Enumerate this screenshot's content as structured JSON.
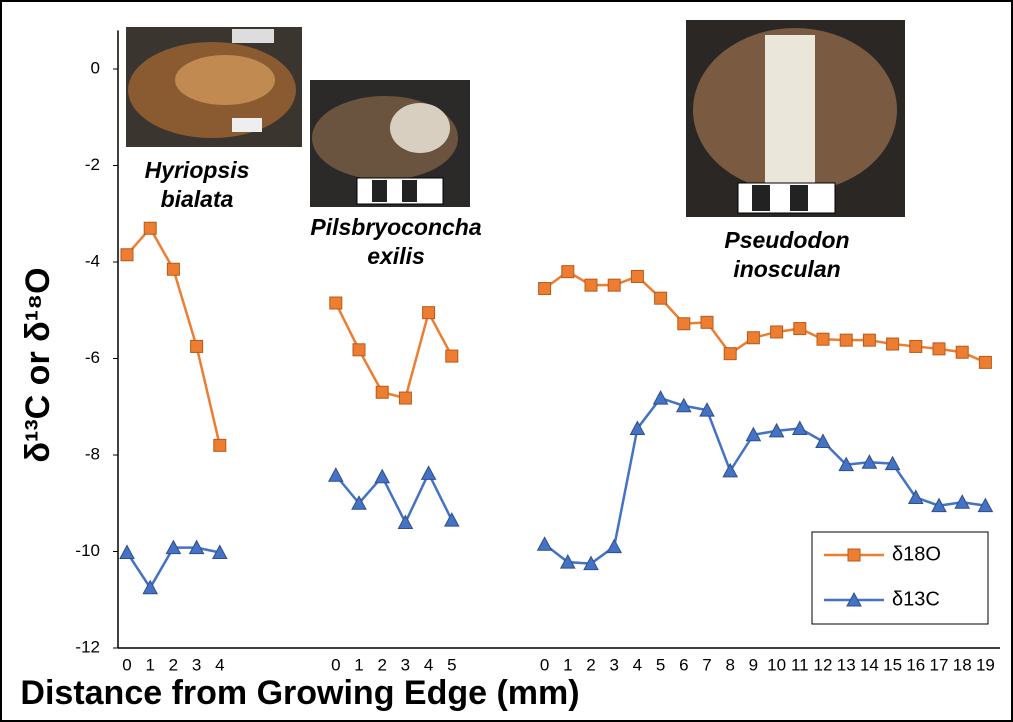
{
  "chart_data": {
    "type": "line",
    "xlabel": "Distance from Growing Edge (mm)",
    "ylabel": "δ¹³C or δ¹⁸O",
    "categories": [
      "0",
      "1",
      "2",
      "3",
      "4",
      null,
      null,
      null,
      null,
      "0",
      "1",
      "2",
      "3",
      "4",
      "5",
      null,
      null,
      null,
      "0",
      "1",
      "2",
      "3",
      "4",
      "5",
      "6",
      "7",
      "8",
      "9",
      "10",
      "11",
      "12",
      "13",
      "14",
      "15",
      "16",
      "17",
      "18",
      "19"
    ],
    "series": [
      {
        "name": "δ18O",
        "color": "#ed7d31",
        "marker": "square",
        "values": [
          -3.85,
          -3.3,
          -4.15,
          -5.75,
          -7.8,
          null,
          null,
          null,
          null,
          -4.85,
          -5.82,
          -6.7,
          -6.82,
          -5.05,
          -5.95,
          null,
          null,
          null,
          -4.55,
          -4.2,
          -4.48,
          -4.48,
          -4.3,
          -4.75,
          -5.28,
          -5.25,
          -5.9,
          -5.57,
          -5.45,
          -5.38,
          -5.6,
          -5.62,
          -5.62,
          -5.7,
          -5.75,
          -5.8,
          -5.87,
          -6.08
        ]
      },
      {
        "name": "δ13C",
        "color": "#4472c4",
        "marker": "triangle",
        "values": [
          -10.02,
          -10.75,
          -9.92,
          -9.92,
          -10.02,
          null,
          null,
          null,
          null,
          -8.42,
          -9.0,
          -8.45,
          -9.4,
          -8.38,
          -9.35,
          null,
          null,
          null,
          -9.85,
          -10.22,
          -10.25,
          -9.9,
          -7.45,
          -6.82,
          -6.98,
          -7.07,
          -8.33,
          -7.58,
          -7.5,
          -7.45,
          -7.72,
          -8.2,
          -8.15,
          -8.18,
          -8.88,
          -9.05,
          -8.98,
          -9.05
        ]
      }
    ],
    "ylim": [
      -12,
      0.8
    ],
    "yticks": [
      0,
      -2,
      -4,
      -6,
      -8,
      -10,
      -12
    ],
    "grid": false,
    "legend": "lower right",
    "annotations": [
      {
        "lines": [
          "Hyriopsis",
          "bialata"
        ]
      },
      {
        "lines": [
          "Pilsbryoconcha",
          "exilis"
        ]
      },
      {
        "lines": [
          "Pseudodon",
          "inosculan"
        ]
      }
    ]
  }
}
